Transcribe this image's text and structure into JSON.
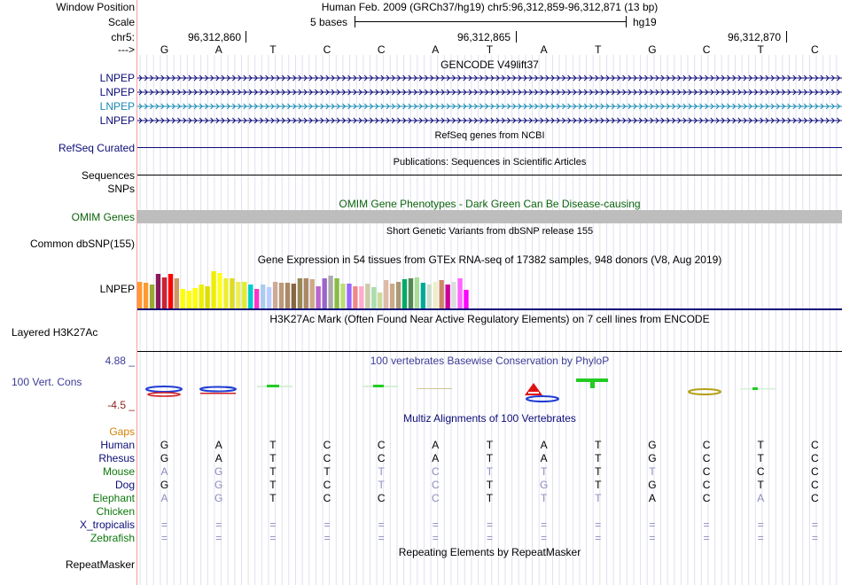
{
  "header": {
    "window_position_label": "Window Position",
    "window_position_value": "Human Feb. 2009 (GRCh37/hg19)   chr5:96,312,859-96,312,871 (13 bp)",
    "scale_label": "Scale",
    "scale_value": "5 bases",
    "scale_assembly": "hg19",
    "chrom_label": "chr5:",
    "strand_label": "--->",
    "positions": [
      "96,312,860",
      "96,312,865",
      "96,312,870"
    ],
    "bases": [
      "G",
      "A",
      "T",
      "C",
      "C",
      "A",
      "T",
      "A",
      "T",
      "G",
      "C",
      "T",
      "C"
    ]
  },
  "tracks": {
    "gencode_title": "GENCODE V49lift37",
    "gencode_genes": [
      "LNPEP",
      "LNPEP",
      "LNPEP",
      "LNPEP"
    ],
    "refseq_label": "RefSeq Curated",
    "refseq_title": "RefSeq genes from NCBI",
    "sequences_label": "Sequences",
    "publications_title": "Publications: Sequences in Scientific Articles",
    "snps_label": "SNPs",
    "omim_title": "OMIM Gene Phenotypes - Dark Green Can Be Disease-causing",
    "omim_label": "OMIM Genes",
    "dbsnp_title": "Short Genetic Variants from dbSNP release 155",
    "dbsnp_label": "Common dbSNP(155)",
    "gtex_title": "Gene Expression in 54 tissues from GTEx RNA-seq of 17382 samples, 948 donors (V8, Aug 2019)",
    "gtex_label": "LNPEP",
    "h3k27_title": "H3K27Ac Mark (Often Found Near Active Regulatory Elements) on 7 cell lines from ENCODE",
    "h3k27_label": "Layered H3K27Ac",
    "phylop_title": "100 vertebrates Basewise Conservation by PhyloP",
    "phylop_label": "100 Vert. Cons",
    "phylop_max": "4.88 _",
    "phylop_min": "-4.5 _",
    "multiz_title": "Multiz Alignments of 100 Vertebrates",
    "gaps_label": "Gaps",
    "repeat_title": "Repeating Elements by RepeatMasker",
    "repeat_label": "RepeatMasker"
  },
  "alignment": {
    "species": [
      "Human",
      "Rhesus",
      "Mouse",
      "Dog",
      "Elephant",
      "Chicken",
      "X_tropicalis",
      "Zebrafish"
    ],
    "rows": [
      "GATCCATATGCTC",
      "GATCCATATGCTC",
      "AGTTTCTTTTCCC",
      "GGTCTCTGTGCTC",
      "AGTCCCTTTACAC",
      "             ",
      "=============",
      "============="
    ],
    "dim": [
      "0000000000000",
      "0000000000000",
      "1100111101000",
      "0100110100000",
      "1100010110010",
      "0000000000000",
      "1111111111111",
      "1111111111111"
    ]
  },
  "gtex_values": [
    0.62,
    0.6,
    0.55,
    0.8,
    0.72,
    0.8,
    0.7,
    0.44,
    0.4,
    0.46,
    0.55,
    0.52,
    0.85,
    0.82,
    0.7,
    0.7,
    0.62,
    0.62,
    0.55,
    0.45,
    0.55,
    0.48,
    0.62,
    0.6,
    0.6,
    0.58,
    0.7,
    0.7,
    0.68,
    0.5,
    0.7,
    0.75,
    0.7,
    0.58,
    0.58,
    0.5,
    0.5,
    0.58,
    0.48,
    0.36,
    0.65,
    0.58,
    0.62,
    0.68,
    0.7,
    0.72,
    0.6,
    0.55,
    0.62,
    0.66,
    0.55,
    0.62,
    0.7,
    0.42
  ],
  "gtex_colors": [
    "#ff9933",
    "#ff9933",
    "#99aa33",
    "#8a1a5a",
    "#cc2233",
    "#ff0000",
    "#cc9966",
    "#ffff00",
    "#ffff00",
    "#ffff00",
    "#eeee00",
    "#dddd00",
    "#eeee00",
    "#ffff22",
    "#eeee33",
    "#dddd22",
    "#eeee55",
    "#ddee33",
    "#00cccc",
    "#ff33cc",
    "#aaccee",
    "#bbccff",
    "#ccaa99",
    "#bb9977",
    "#aa8866",
    "#886644",
    "#998855",
    "#aa8866",
    "#ccaa88",
    "#bb66cc",
    "#9966cc",
    "#aaaaaa",
    "#88bb44",
    "#bbdd77",
    "#9966ff",
    "#ee8888",
    "#ffaacc",
    "#ccccaa",
    "#aaddaa",
    "#ccdd99",
    "#ddbbaa",
    "#ccaa88",
    "#aa9977",
    "#00aa66",
    "#558855",
    "#aadd99",
    "#00aa99",
    "#ccddcc",
    "#eeeecc",
    "#cc8866",
    "#cc0099",
    "#dddddd",
    "#ff66ff",
    "#ff00ff"
  ],
  "colors": {
    "track_navy": "#0c0c78",
    "gencode_teal": "#1a8bb4",
    "omim_bar": "#bdbdbd",
    "phylop_pos": "#000000",
    "grid_line": "#e0e0f0"
  }
}
